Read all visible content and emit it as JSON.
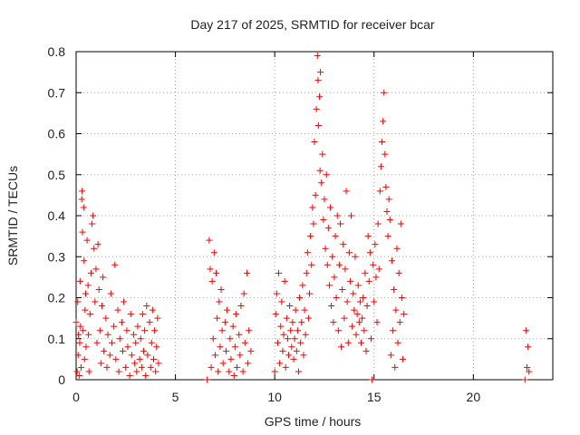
{
  "chart_data": {
    "type": "scatter",
    "title": "Day 217 of 2025, SRMTID for receiver bcar",
    "xlabel": "GPS time / hours",
    "ylabel": "SRMTID / TECUs",
    "xlim": [
      0,
      24
    ],
    "ylim": [
      0,
      0.8
    ],
    "xticks": [
      0,
      5,
      10,
      15,
      20
    ],
    "xtick_labels": [
      "0",
      "5",
      "10",
      "15",
      "20"
    ],
    "yticks": [
      0,
      0.1,
      0.2,
      0.3,
      0.4,
      0.5,
      0.6,
      0.7,
      0.8
    ],
    "ytick_labels": [
      "0",
      "0.1",
      "0.2",
      "0.3",
      "0.4",
      "0.5",
      "0.6",
      "0.7",
      "0.8"
    ],
    "grid": true,
    "marker": "plus",
    "color": "#ff0000",
    "series": [
      {
        "name": "bcar",
        "points": [
          [
            0.0,
            0.14
          ],
          [
            0.05,
            0.02
          ],
          [
            0.08,
            0.19
          ],
          [
            0.1,
            0.06
          ],
          [
            0.12,
            0.11
          ],
          [
            0.15,
            0.01
          ],
          [
            0.18,
            0.09
          ],
          [
            0.2,
            0.24
          ],
          [
            0.22,
            0.13
          ],
          [
            0.25,
            0.03
          ],
          [
            0.28,
            0.44
          ],
          [
            0.3,
            0.46
          ],
          [
            0.32,
            0.36
          ],
          [
            0.35,
            0.12
          ],
          [
            0.38,
            0.42
          ],
          [
            0.4,
            0.29
          ],
          [
            0.42,
            0.05
          ],
          [
            0.45,
            0.17
          ],
          [
            0.48,
            0.21
          ],
          [
            0.5,
            0.08
          ],
          [
            0.55,
            0.34
          ],
          [
            0.6,
            0.23
          ],
          [
            0.62,
            0.11
          ],
          [
            0.65,
            0.02
          ],
          [
            0.7,
            0.16
          ],
          [
            0.75,
            0.26
          ],
          [
            0.8,
            0.38
          ],
          [
            0.85,
            0.4
          ],
          [
            0.9,
            0.32
          ],
          [
            0.95,
            0.19
          ],
          [
            1.0,
            0.27
          ],
          [
            1.05,
            0.09
          ],
          [
            1.1,
            0.33
          ],
          [
            1.15,
            0.22
          ],
          [
            1.2,
            0.12
          ],
          [
            1.25,
            0.04
          ],
          [
            1.3,
            0.18
          ],
          [
            1.35,
            0.25
          ],
          [
            1.4,
            0.07
          ],
          [
            1.5,
            0.15
          ],
          [
            1.55,
            0.03
          ],
          [
            1.6,
            0.11
          ],
          [
            1.7,
            0.06
          ],
          [
            1.75,
            0.21
          ],
          [
            1.8,
            0.09
          ],
          [
            1.9,
            0.13
          ],
          [
            1.95,
            0.28
          ],
          [
            2.0,
            0.05
          ],
          [
            2.1,
            0.17
          ],
          [
            2.15,
            0.02
          ],
          [
            2.2,
            0.1
          ],
          [
            2.3,
            0.14
          ],
          [
            2.35,
            0.07
          ],
          [
            2.4,
            0.19
          ],
          [
            2.5,
            0.03
          ],
          [
            2.55,
            0.12
          ],
          [
            2.6,
            0.08
          ],
          [
            2.7,
            0.01
          ],
          [
            2.75,
            0.16
          ],
          [
            2.8,
            0.06
          ],
          [
            2.9,
            0.11
          ],
          [
            2.95,
            0.04
          ],
          [
            3.0,
            0.09
          ],
          [
            3.05,
            0.02
          ],
          [
            3.1,
            0.13
          ],
          [
            3.2,
            0.05
          ],
          [
            3.25,
            0.1
          ],
          [
            3.3,
            0.03
          ],
          [
            3.35,
            0.16
          ],
          [
            3.4,
            0.07
          ],
          [
            3.45,
            0.12
          ],
          [
            3.5,
            0.01
          ],
          [
            3.55,
            0.18
          ],
          [
            3.6,
            0.06
          ],
          [
            3.7,
            0.14
          ],
          [
            3.75,
            0.03
          ],
          [
            3.8,
            0.09
          ],
          [
            3.85,
            0.17
          ],
          [
            3.9,
            0.05
          ],
          [
            3.95,
            0.12
          ],
          [
            4.0,
            0.02
          ],
          [
            4.05,
            0.08
          ],
          [
            4.1,
            0.15
          ],
          [
            4.15,
            0.04
          ],
          [
            6.6,
            0.0
          ],
          [
            6.7,
            0.34
          ],
          [
            6.75,
            0.27
          ],
          [
            6.8,
            0.03
          ],
          [
            6.85,
            0.24
          ],
          [
            6.9,
            0.1
          ],
          [
            6.95,
            0.31
          ],
          [
            7.0,
            0.06
          ],
          [
            7.05,
            0.26
          ],
          [
            7.1,
            0.15
          ],
          [
            7.15,
            0.02
          ],
          [
            7.2,
            0.19
          ],
          [
            7.25,
            0.08
          ],
          [
            7.3,
            0.22
          ],
          [
            7.35,
            0.12
          ],
          [
            7.4,
            0.04
          ],
          [
            7.5,
            0.14
          ],
          [
            7.55,
            0.07
          ],
          [
            7.6,
            0.17
          ],
          [
            7.7,
            0.02
          ],
          [
            7.75,
            0.1
          ],
          [
            7.8,
            0.05
          ],
          [
            7.9,
            0.13
          ],
          [
            7.95,
            0.01
          ],
          [
            8.0,
            0.08
          ],
          [
            8.05,
            0.16
          ],
          [
            8.1,
            0.03
          ],
          [
            8.2,
            0.11
          ],
          [
            8.25,
            0.06
          ],
          [
            8.3,
            0.18
          ],
          [
            8.4,
            0.02
          ],
          [
            8.45,
            0.21
          ],
          [
            8.5,
            0.09
          ],
          [
            8.6,
            0.26
          ],
          [
            8.65,
            0.04
          ],
          [
            8.7,
            0.12
          ],
          [
            8.8,
            0.07
          ],
          [
            10.0,
            0.02
          ],
          [
            10.05,
            0.16
          ],
          [
            10.1,
            0.21
          ],
          [
            10.15,
            0.09
          ],
          [
            10.2,
            0.26
          ],
          [
            10.25,
            0.04
          ],
          [
            10.3,
            0.13
          ],
          [
            10.35,
            0.19
          ],
          [
            10.4,
            0.07
          ],
          [
            10.45,
            0.11
          ],
          [
            10.5,
            0.24
          ],
          [
            10.55,
            0.03
          ],
          [
            10.6,
            0.15
          ],
          [
            10.65,
            0.1
          ],
          [
            10.7,
            0.06
          ],
          [
            10.75,
            0.18
          ],
          [
            10.8,
            0.12
          ],
          [
            10.85,
            0.08
          ],
          [
            10.9,
            0.14
          ],
          [
            10.95,
            0.05
          ],
          [
            11.0,
            0.1
          ],
          [
            11.05,
            0.17
          ],
          [
            11.1,
            0.07
          ],
          [
            11.15,
            0.12
          ],
          [
            11.2,
            0.02
          ],
          [
            11.25,
            0.2
          ],
          [
            11.3,
            0.09
          ],
          [
            11.35,
            0.14
          ],
          [
            11.4,
            0.23
          ],
          [
            11.45,
            0.06
          ],
          [
            11.5,
            0.17
          ],
          [
            11.55,
            0.11
          ],
          [
            11.6,
            0.26
          ],
          [
            11.65,
            0.31
          ],
          [
            11.7,
            0.15
          ],
          [
            11.75,
            0.21
          ],
          [
            11.8,
            0.35
          ],
          [
            11.85,
            0.28
          ],
          [
            11.9,
            0.42
          ],
          [
            11.95,
            0.38
          ],
          [
            12.0,
            0.58
          ],
          [
            12.05,
            0.45
          ],
          [
            12.1,
            0.66
          ],
          [
            12.15,
            0.79
          ],
          [
            12.18,
            0.73
          ],
          [
            12.2,
            0.62
          ],
          [
            12.25,
            0.69
          ],
          [
            12.28,
            0.51
          ],
          [
            12.3,
            0.75
          ],
          [
            12.35,
            0.48
          ],
          [
            12.4,
            0.55
          ],
          [
            12.45,
            0.39
          ],
          [
            12.5,
            0.44
          ],
          [
            12.55,
            0.32
          ],
          [
            12.6,
            0.5
          ],
          [
            12.65,
            0.28
          ],
          [
            12.7,
            0.37
          ],
          [
            12.75,
            0.23
          ],
          [
            12.8,
            0.42
          ],
          [
            12.85,
            0.18
          ],
          [
            12.9,
            0.3
          ],
          [
            12.95,
            0.14
          ],
          [
            13.0,
            0.25
          ],
          [
            13.05,
            0.35
          ],
          [
            13.1,
            0.2
          ],
          [
            13.15,
            0.4
          ],
          [
            13.2,
            0.12
          ],
          [
            13.25,
            0.28
          ],
          [
            13.3,
            0.38
          ],
          [
            13.35,
            0.08
          ],
          [
            13.4,
            0.22
          ],
          [
            13.45,
            0.33
          ],
          [
            13.5,
            0.15
          ],
          [
            13.55,
            0.27
          ],
          [
            13.6,
            0.46
          ],
          [
            13.65,
            0.19
          ],
          [
            13.7,
            0.09
          ],
          [
            13.75,
            0.31
          ],
          [
            13.8,
            0.24
          ],
          [
            13.85,
            0.4
          ],
          [
            13.9,
            0.13
          ],
          [
            13.95,
            0.21
          ],
          [
            14.0,
            0.17
          ],
          [
            14.05,
            0.3
          ],
          [
            14.1,
            0.11
          ],
          [
            14.15,
            0.16
          ],
          [
            14.2,
            0.23
          ],
          [
            14.25,
            0.14
          ],
          [
            14.3,
            0.19
          ],
          [
            14.35,
            0.09
          ],
          [
            14.4,
            0.15
          ],
          [
            14.45,
            0.2
          ],
          [
            14.5,
            0.12
          ],
          [
            14.55,
            0.26
          ],
          [
            14.6,
            0.07
          ],
          [
            14.65,
            0.18
          ],
          [
            14.7,
            0.35
          ],
          [
            14.75,
            0.24
          ],
          [
            14.8,
            0.31
          ],
          [
            14.85,
            0.1
          ],
          [
            14.9,
            0.0
          ],
          [
            14.95,
            0.28
          ],
          [
            15.0,
            0.19
          ],
          [
            15.05,
            0.33
          ],
          [
            15.1,
            0.25
          ],
          [
            15.15,
            0.14
          ],
          [
            15.2,
            0.38
          ],
          [
            15.25,
            0.27
          ],
          [
            15.3,
            0.46
          ],
          [
            15.35,
            0.52
          ],
          [
            15.4,
            0.58
          ],
          [
            15.45,
            0.63
          ],
          [
            15.5,
            0.7
          ],
          [
            15.55,
            0.55
          ],
          [
            15.6,
            0.47
          ],
          [
            15.65,
            0.41
          ],
          [
            15.7,
            0.35
          ],
          [
            15.75,
            0.44
          ],
          [
            15.8,
            0.39
          ],
          [
            15.85,
            0.06
          ],
          [
            15.9,
            0.29
          ],
          [
            15.95,
            0.12
          ],
          [
            16.0,
            0.22
          ],
          [
            16.05,
            0.03
          ],
          [
            16.1,
            0.17
          ],
          [
            16.15,
            0.32
          ],
          [
            16.2,
            0.09
          ],
          [
            16.25,
            0.26
          ],
          [
            16.3,
            0.14
          ],
          [
            16.35,
            0.38
          ],
          [
            16.4,
            0.2
          ],
          [
            16.45,
            0.05
          ],
          [
            16.5,
            0.16
          ],
          [
            22.6,
            0.0
          ],
          [
            22.65,
            0.12
          ],
          [
            22.7,
            0.03
          ],
          [
            22.75,
            0.08
          ],
          [
            22.8,
            0.02
          ]
        ]
      }
    ]
  }
}
